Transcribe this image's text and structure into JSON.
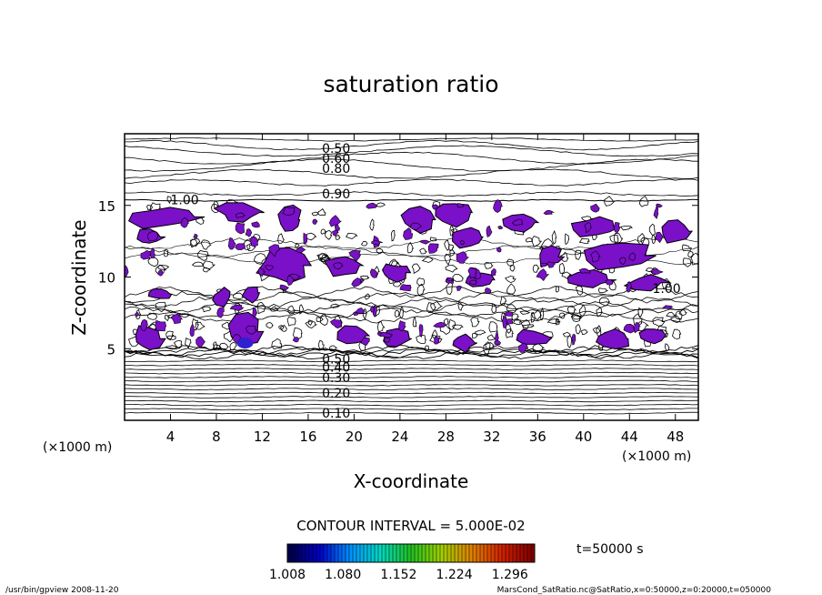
{
  "chart_data": {
    "type": "contour",
    "title": "saturation ratio",
    "xlabel": "X-coordinate",
    "ylabel": "Z-coordinate",
    "x_unit": "(×1000 m)",
    "y_unit": "(×1000 m)",
    "xlim": [
      0,
      50
    ],
    "ylim": [
      0,
      20
    ],
    "x_ticks": [
      4,
      8,
      12,
      16,
      20,
      24,
      28,
      32,
      36,
      40,
      44,
      48
    ],
    "y_ticks": [
      5,
      10,
      15
    ],
    "contour_interval_text": "CONTOUR INTERVAL = 5.000E-02",
    "contour_labels": [
      {
        "text": "0.50",
        "x": 17.2,
        "z": 19.0
      },
      {
        "text": "0.60",
        "x": 17.2,
        "z": 18.3
      },
      {
        "text": "0.80",
        "x": 17.2,
        "z": 17.6
      },
      {
        "text": "0.90",
        "x": 17.2,
        "z": 15.8
      },
      {
        "text": "1.00",
        "x": 4.0,
        "z": 15.4
      },
      {
        "text": "1.00",
        "x": 46.0,
        "z": 9.2
      },
      {
        "text": "0.50",
        "x": 17.2,
        "z": 4.3
      },
      {
        "text": "0.40",
        "x": 17.2,
        "z": 3.7
      },
      {
        "text": "0.30",
        "x": 17.2,
        "z": 3.0
      },
      {
        "text": "0.20",
        "x": 17.2,
        "z": 1.9
      },
      {
        "text": "0.10",
        "x": 17.2,
        "z": 0.5
      }
    ],
    "shaded_threshold": 1.0,
    "shade_color": "#7a10c8",
    "colorbar": {
      "ticks": [
        "1.008",
        "1.080",
        "1.152",
        "1.224",
        "1.296"
      ],
      "colors": [
        "#00004a",
        "#0000c8",
        "#0090ff",
        "#00d8c0",
        "#20c020",
        "#a0d000",
        "#e08000",
        "#d02000",
        "#800000"
      ]
    },
    "time_label": "t=50000 s"
  },
  "footer": {
    "left": "/usr/bin/gpview  2008-11-20",
    "right": "MarsCond_SatRatio.nc@SatRatio,x=0:50000,z=0:20000,t=050000"
  }
}
